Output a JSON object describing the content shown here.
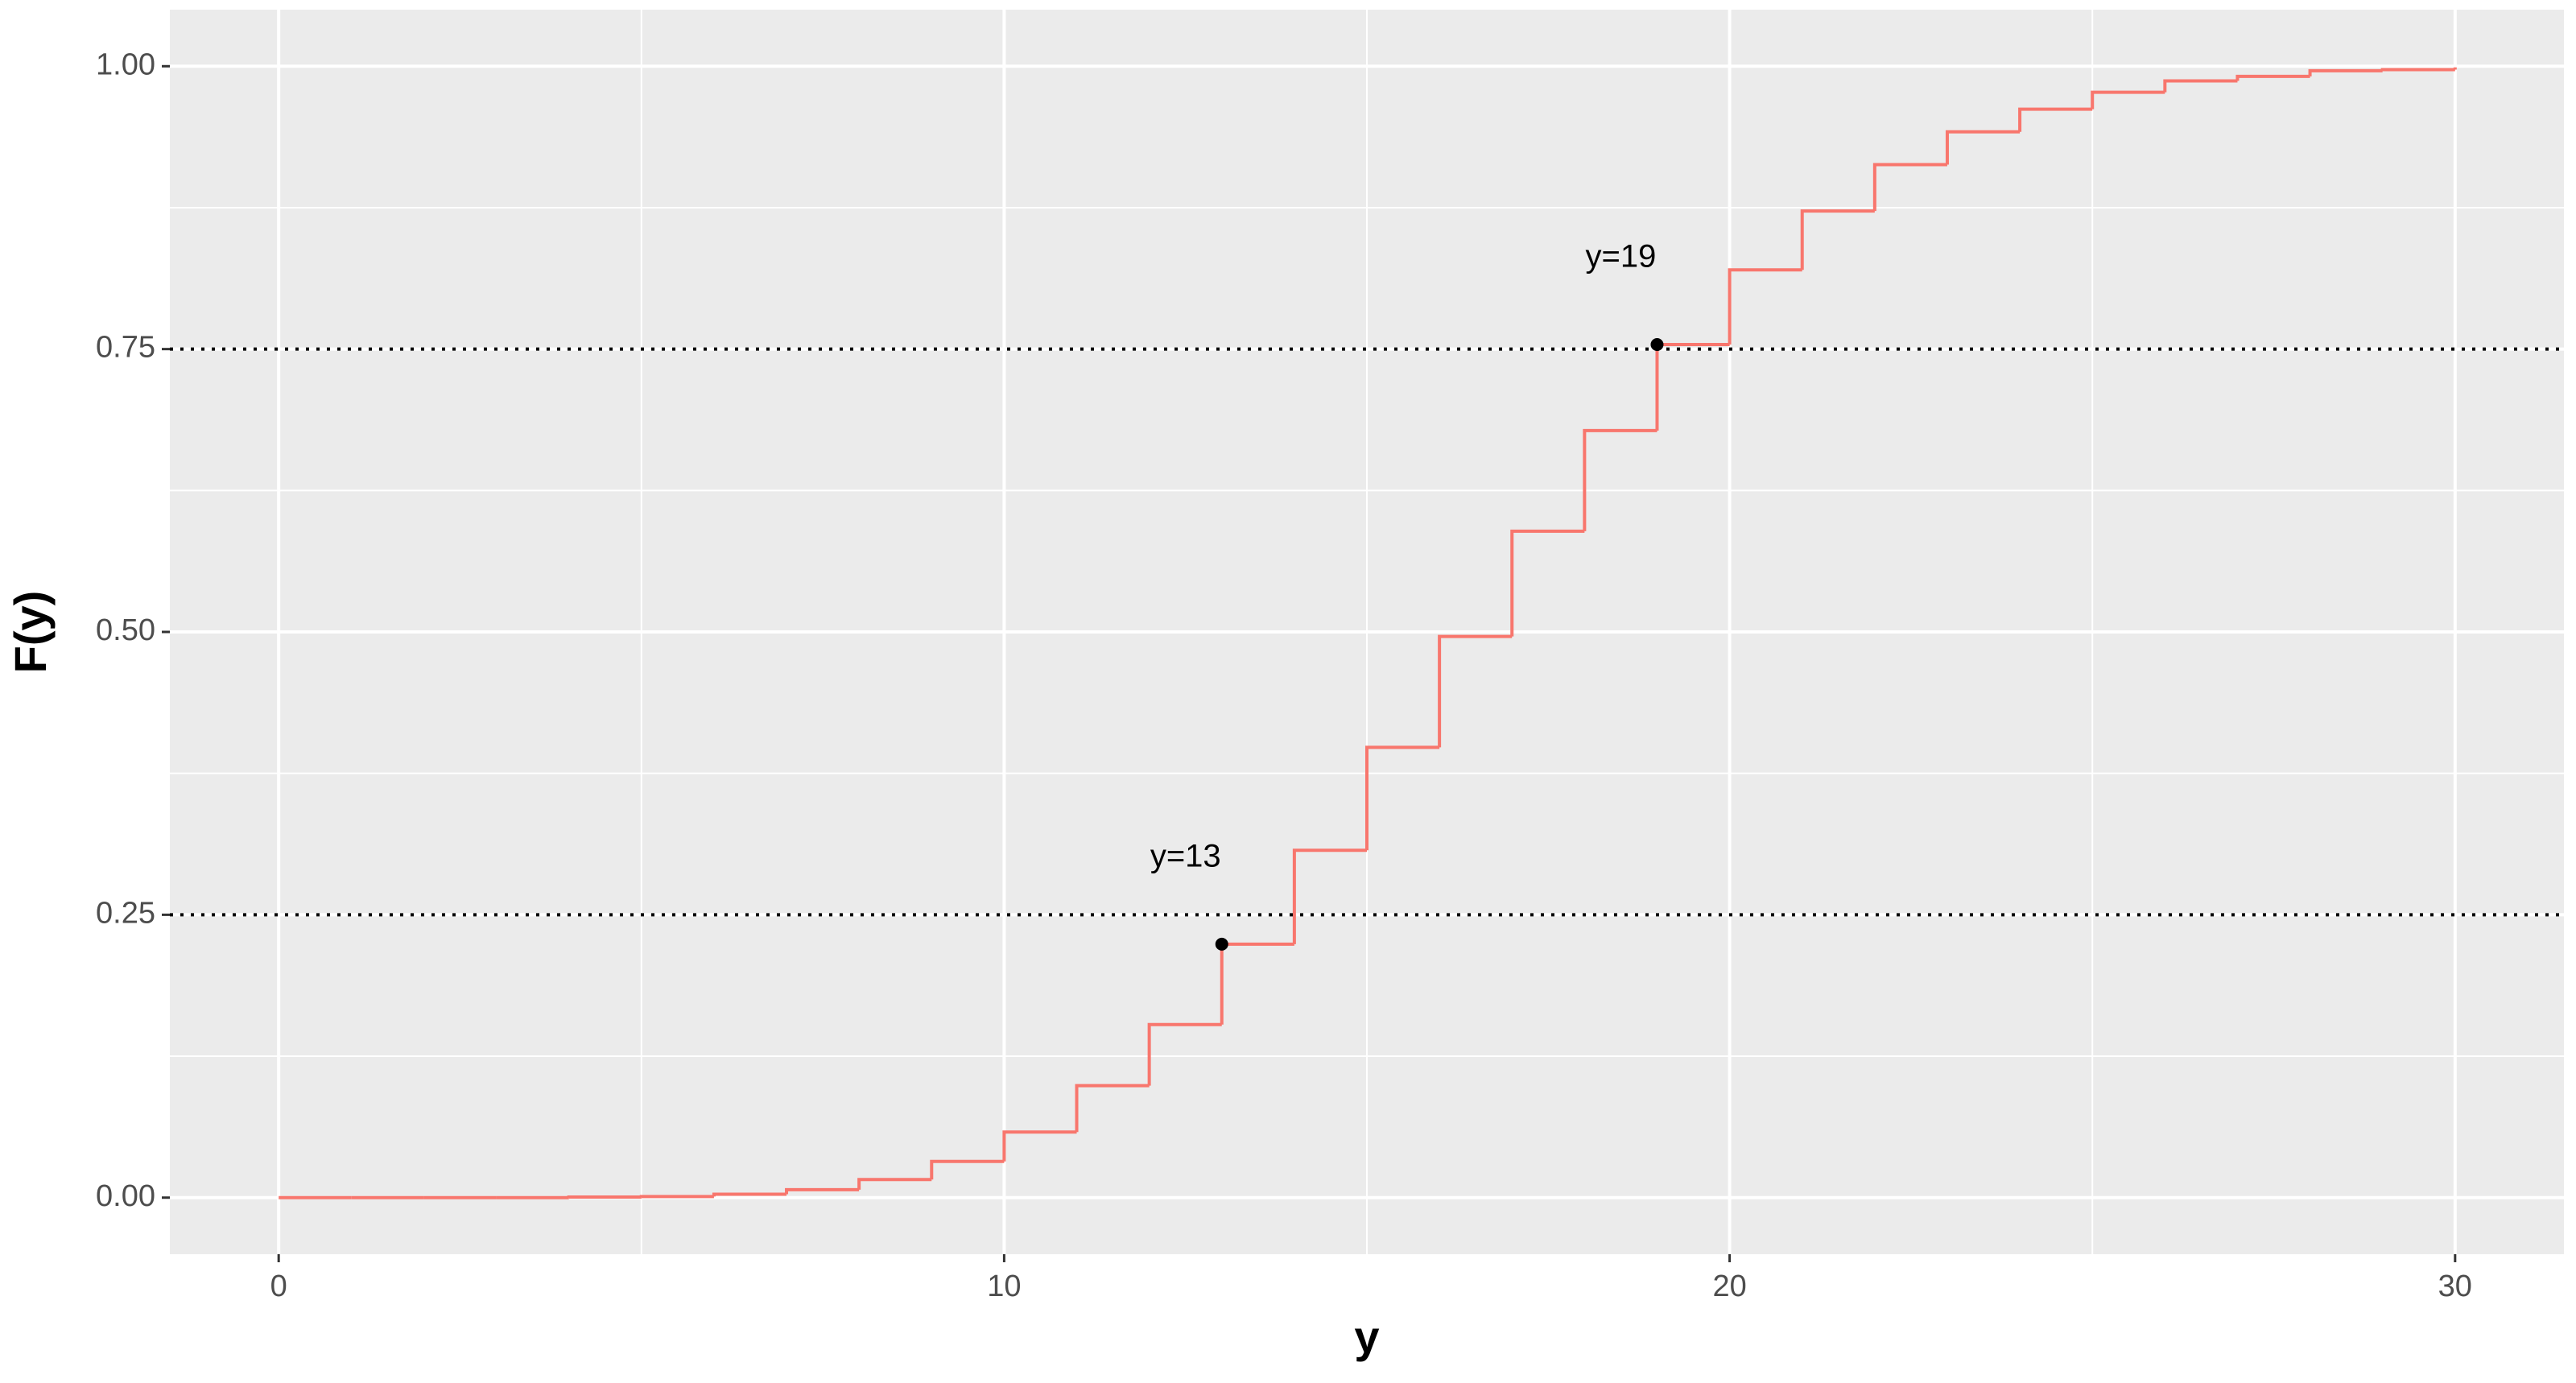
{
  "chart_data": {
    "type": "step",
    "x_label": "y",
    "y_label": "F(y)",
    "x": [
      0,
      1,
      2,
      3,
      4,
      5,
      6,
      7,
      8,
      9,
      10,
      11,
      12,
      13,
      14,
      15,
      16,
      17,
      18,
      19,
      20,
      21,
      22,
      23,
      24,
      25,
      26,
      27,
      28,
      29,
      30
    ],
    "values": [
      0,
      0,
      0,
      0,
      0.0005,
      0.001,
      0.003,
      0.007,
      0.016,
      0.032,
      0.058,
      0.099,
      0.153,
      0.224,
      0.307,
      0.398,
      0.496,
      0.589,
      0.678,
      0.754,
      0.82,
      0.872,
      0.913,
      0.942,
      0.962,
      0.977,
      0.987,
      0.991,
      0.996,
      0.997,
      0.999
    ],
    "color": "#f8766d",
    "xlim": [
      -1.5,
      31.5
    ],
    "xticks": [
      0,
      10,
      20,
      30
    ],
    "ylim": [
      -0.05,
      1.05
    ],
    "yticks": [
      {
        "value": 0,
        "label": "0.00"
      },
      {
        "value": 0.25,
        "label": "0.25"
      },
      {
        "value": 0.5,
        "label": "0.50"
      },
      {
        "value": 0.75,
        "label": "0.75"
      },
      {
        "value": 1,
        "label": "1.00"
      }
    ],
    "hlines": [
      0.25,
      0.75
    ],
    "annotations": [
      {
        "x": 13,
        "y": 0.224,
        "label": "y=13"
      },
      {
        "x": 19,
        "y": 0.754,
        "label": "y=19"
      }
    ],
    "grid": true
  }
}
